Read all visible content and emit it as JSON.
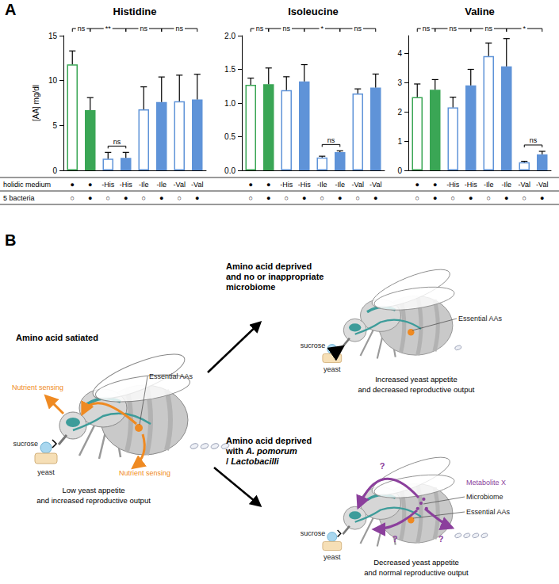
{
  "panel_labels": [
    "A",
    "B"
  ],
  "chart_data": [
    {
      "type": "bar",
      "title": "Histidine",
      "ylabel": "[AA] mg/dl",
      "values": [
        11.8,
        6.7,
        1.3,
        1.4,
        6.8,
        7.6,
        7.7,
        7.9
      ],
      "errors": [
        1.5,
        1.4,
        0.7,
        0.6,
        2.5,
        2.8,
        2.9,
        2.8
      ],
      "colors": [
        "#3aa655",
        "#3aa655",
        "#5f93d8",
        "#5f93d8",
        "#5f93d8",
        "#5f93d8",
        "#5f93d8",
        "#5f93d8"
      ],
      "ylim": [
        0,
        15
      ],
      "yticks": [
        0,
        5,
        10,
        15
      ],
      "grid": false,
      "comparisons": [
        {
          "between": [
            0,
            1
          ],
          "label": "ns"
        },
        {
          "between": [
            1,
            3
          ],
          "label": "**"
        },
        {
          "between": [
            3,
            5
          ],
          "label": "ns"
        },
        {
          "between": [
            5,
            7
          ],
          "label": "ns"
        }
      ],
      "pair_comparisons": [
        {
          "between": [
            2,
            3
          ],
          "label": "ns"
        }
      ]
    },
    {
      "type": "bar",
      "title": "Isoleucine",
      "values": [
        1.27,
        1.28,
        1.19,
        1.32,
        0.19,
        0.27,
        1.14,
        1.23
      ],
      "errors": [
        0.1,
        0.24,
        0.2,
        0.25,
        0.02,
        0.02,
        0.07,
        0.2
      ],
      "colors": [
        "#3aa655",
        "#3aa655",
        "#5f93d8",
        "#5f93d8",
        "#5f93d8",
        "#5f93d8",
        "#5f93d8",
        "#5f93d8"
      ],
      "ylim": [
        0,
        2
      ],
      "yticks": [
        {
          "value": 0,
          "label": "0.0"
        },
        0.5,
        {
          "value": 1,
          "label": "1.0"
        },
        1.5,
        {
          "value": 2,
          "label": "2.0"
        }
      ],
      "grid": false,
      "comparisons": [
        {
          "between": [
            0,
            1
          ],
          "label": "ns"
        },
        {
          "between": [
            1,
            3
          ],
          "label": "ns"
        },
        {
          "between": [
            3,
            5
          ],
          "label": "*"
        },
        {
          "between": [
            5,
            7
          ],
          "label": "ns"
        }
      ],
      "pair_comparisons": [
        {
          "between": [
            4,
            5
          ],
          "label": "ns"
        }
      ]
    },
    {
      "type": "bar",
      "title": "Valine",
      "values": [
        2.5,
        2.75,
        2.15,
        2.9,
        3.9,
        3.55,
        0.28,
        0.55
      ],
      "errors": [
        0.45,
        0.35,
        0.35,
        0.55,
        0.45,
        0.95,
        0.03,
        0.1
      ],
      "colors": [
        "#3aa655",
        "#3aa655",
        "#5f93d8",
        "#5f93d8",
        "#5f93d8",
        "#5f93d8",
        "#5f93d8",
        "#5f93d8"
      ],
      "ylim": [
        0,
        4.6
      ],
      "yticks": [
        0,
        1,
        2,
        3,
        4
      ],
      "grid": false,
      "comparisons": [
        {
          "between": [
            0,
            1
          ],
          "label": "ns"
        },
        {
          "between": [
            1,
            3
          ],
          "label": "ns"
        },
        {
          "between": [
            3,
            5
          ],
          "label": "ns"
        },
        {
          "between": [
            5,
            7
          ],
          "label": "*"
        }
      ],
      "pair_comparisons": [
        {
          "between": [
            6,
            7
          ],
          "label": "ns"
        }
      ]
    }
  ],
  "conditions": {
    "rows": [
      {
        "label": "holidic medium",
        "cells": [
          "●",
          "●",
          "-His",
          "-His",
          "-Ile",
          "-Ile",
          "-Val",
          "-Val"
        ]
      },
      {
        "label": "5 bacteria",
        "cells": [
          "○",
          "●",
          "○",
          "●",
          "○",
          "●",
          "○",
          "●"
        ]
      }
    ]
  },
  "diagram": {
    "states": [
      {
        "title": [
          [
            {
              "text": "Amino acid satiated"
            }
          ]
        ],
        "labels": [
          {
            "text": "Nutrient sensing",
            "kind": "sensing"
          },
          {
            "text": "Essential AAs",
            "kind": "aa"
          },
          {
            "text": "Nutrient sensing",
            "kind": "sensing"
          }
        ],
        "food": [
          "sucrose",
          "yeast"
        ],
        "caption": [
          "Low yeast appetite",
          "and increased reproductive output"
        ]
      },
      {
        "title": [
          [
            {
              "text": "Amino acid deprived"
            }
          ],
          [
            {
              "text": "and no or inappropriate"
            }
          ],
          [
            {
              "text": "microbiome"
            }
          ]
        ],
        "labels": [
          {
            "text": "Essential AAs",
            "kind": "aa"
          }
        ],
        "food": [
          "sucrose",
          "yeast"
        ],
        "caption": [
          "Increased yeast appetite",
          "and decreased reproductive output"
        ]
      },
      {
        "title": [
          [
            {
              "text": "Amino acid deprived"
            }
          ],
          [
            {
              "text": "with "
            },
            {
              "text": "A. pomorum",
              "italic": true
            }
          ],
          [
            {
              "text": "/ "
            },
            {
              "text": "Lactobacilli",
              "italic": true
            }
          ]
        ],
        "labels": [
          {
            "text": "Metabolite X",
            "kind": "metabolite"
          },
          {
            "text": "Microbiome",
            "kind": "microbiome"
          },
          {
            "text": "Essential AAs",
            "kind": "aa"
          },
          {
            "text": "?",
            "kind": "question"
          },
          {
            "text": "?",
            "kind": "question"
          },
          {
            "text": "?",
            "kind": "question"
          }
        ],
        "food": [
          "sucrose",
          "yeast"
        ],
        "caption": [
          "Decreased yeast appetite",
          "and normal reproductive output"
        ]
      }
    ]
  }
}
